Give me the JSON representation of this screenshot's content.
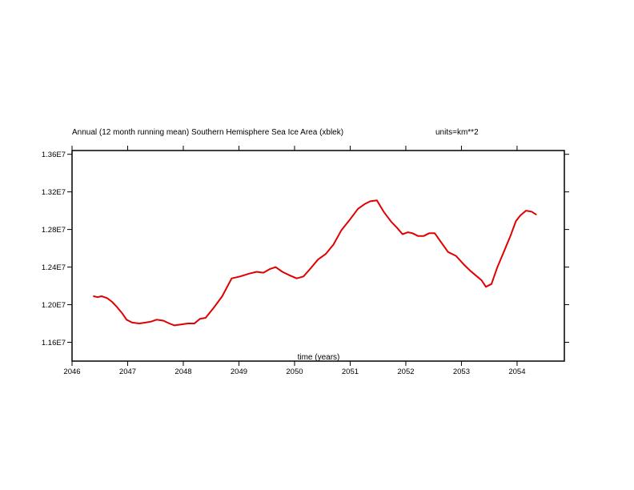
{
  "chart_data": {
    "type": "line",
    "title": "Annual (12 month running mean) Southern Hemisphere Sea Ice Area (xblek)",
    "units_label": "units=km**2",
    "xlabel": "time (years)",
    "ylabel": "",
    "xlim": [
      2046.0,
      2054.85
    ],
    "ylim": [
      11.4,
      13.64
    ],
    "x_ticks": [
      2046,
      2047,
      2048,
      2049,
      2050,
      2051,
      2052,
      2053,
      2054
    ],
    "x_tick_labels": [
      "2046",
      "2047",
      "2048",
      "2049",
      "2050",
      "2051",
      "2052",
      "2053",
      "2054"
    ],
    "y_ticks": [
      11.6,
      12.0,
      12.4,
      12.8,
      13.2,
      13.6
    ],
    "y_tick_labels": [
      "1.16E7",
      "1.20E7",
      "1.24E7",
      "1.28E7",
      "1.32E7",
      "1.36E7"
    ],
    "y_scale_note": "values in units of 1E6 km**2",
    "grid": false,
    "series": [
      {
        "name": "Southern Hemisphere Sea Ice Area",
        "color": "#e00000",
        "x": [
          2046.39,
          2046.46,
          2046.53,
          2046.63,
          2046.72,
          2046.8,
          2046.9,
          2046.98,
          2047.08,
          2047.21,
          2047.32,
          2047.42,
          2047.52,
          2047.64,
          2047.75,
          2047.84,
          2047.96,
          2048.08,
          2048.2,
          2048.3,
          2048.4,
          2048.55,
          2048.7,
          2048.87,
          2049.02,
          2049.18,
          2049.32,
          2049.44,
          2049.56,
          2049.66,
          2049.78,
          2049.92,
          2050.04,
          2050.16,
          2050.28,
          2050.42,
          2050.56,
          2050.7,
          2050.84,
          2051.0,
          2051.14,
          2051.26,
          2051.36,
          2051.48,
          2051.6,
          2051.74,
          2051.84,
          2051.94,
          2052.04,
          2052.12,
          2052.22,
          2052.32,
          2052.42,
          2052.52,
          2052.64,
          2052.76,
          2052.9,
          2053.04,
          2053.16,
          2053.28,
          2053.36,
          2053.44,
          2053.54,
          2053.64,
          2053.76,
          2053.88,
          2053.98,
          2054.06,
          2054.16,
          2054.26,
          2054.34
        ],
        "values": [
          12.09,
          12.08,
          12.09,
          12.07,
          12.03,
          11.98,
          11.91,
          11.84,
          11.81,
          11.8,
          11.81,
          11.82,
          11.84,
          11.83,
          11.8,
          11.78,
          11.79,
          11.8,
          11.8,
          11.85,
          11.86,
          11.97,
          12.09,
          12.28,
          12.3,
          12.33,
          12.35,
          12.34,
          12.38,
          12.4,
          12.35,
          12.31,
          12.28,
          12.3,
          12.38,
          12.48,
          12.54,
          12.64,
          12.79,
          12.91,
          13.02,
          13.07,
          13.1,
          13.11,
          12.99,
          12.88,
          12.82,
          12.75,
          12.77,
          12.76,
          12.73,
          12.73,
          12.76,
          12.76,
          12.66,
          12.56,
          12.52,
          12.43,
          12.36,
          12.3,
          12.26,
          12.19,
          12.22,
          12.39,
          12.56,
          12.73,
          12.89,
          12.95,
          13.0,
          12.99,
          12.96
        ]
      }
    ]
  }
}
